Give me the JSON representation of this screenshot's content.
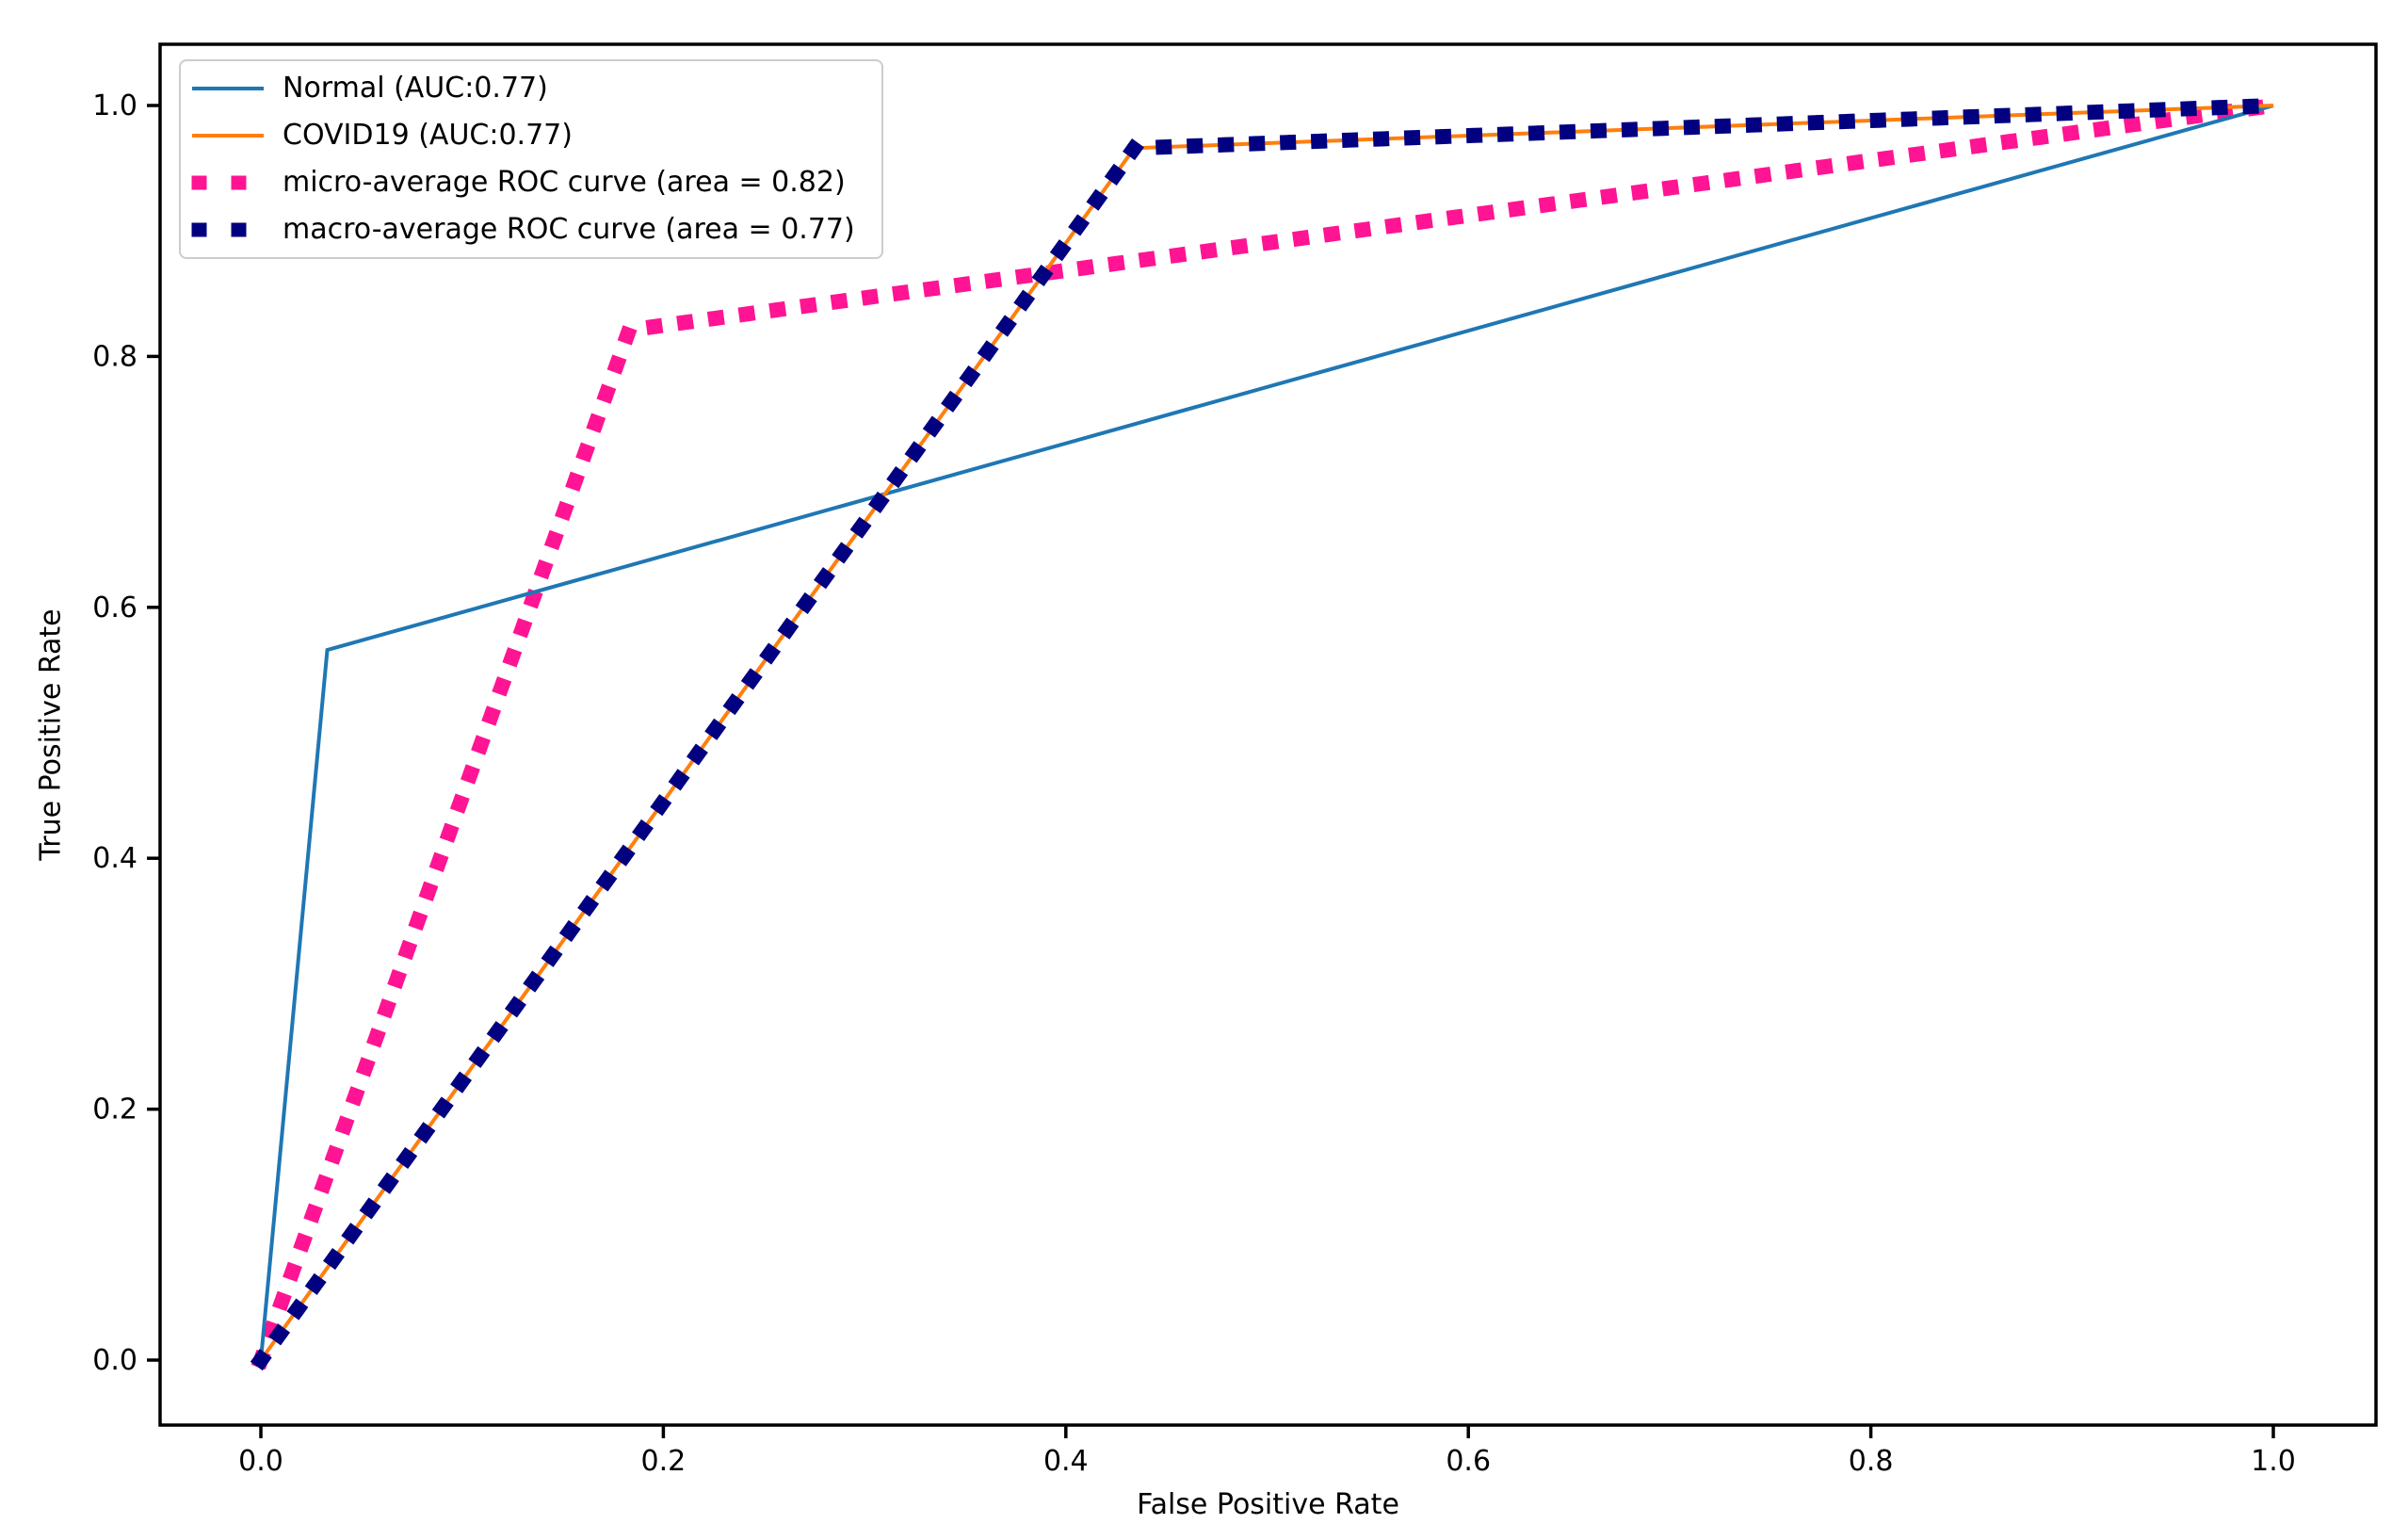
{
  "chart_data": {
    "type": "line",
    "title": "",
    "xlabel": "False Positive Rate",
    "ylabel": "True Positive Rate",
    "xlim": [
      -0.05,
      1.05
    ],
    "ylim": [
      -0.05,
      1.05
    ],
    "grid": false,
    "legend_position": "upper left",
    "x_ticks": [
      0.0,
      0.2,
      0.4,
      0.6,
      0.8,
      1.0
    ],
    "x_tick_labels": [
      "0.0",
      "0.2",
      "0.4",
      "0.6",
      "0.8",
      "1.0"
    ],
    "y_ticks": [
      0.0,
      0.2,
      0.4,
      0.6,
      0.8,
      1.0
    ],
    "y_tick_labels": [
      "0.0",
      "0.2",
      "0.4",
      "0.6",
      "0.8",
      "1.0"
    ],
    "series": [
      {
        "id": "normal",
        "name": "Normal (AUC:0.77)",
        "color": "#1f77b4",
        "linestyle": "solid",
        "auc": 0.77,
        "points": [
          [
            0.0,
            0.0
          ],
          [
            0.033,
            0.566
          ],
          [
            1.0,
            1.0
          ]
        ]
      },
      {
        "id": "covid19",
        "name": "COVID19 (AUC:0.77)",
        "color": "#ff7f0e",
        "linestyle": "solid",
        "auc": 0.77,
        "points": [
          [
            0.0,
            0.0
          ],
          [
            0.434,
            0.966
          ],
          [
            1.0,
            1.0
          ]
        ]
      },
      {
        "id": "micro-average",
        "name": "micro-average ROC curve (area = 0.82)",
        "color": "#ff1493",
        "linestyle": "dotted",
        "auc": 0.82,
        "points": [
          [
            0.0,
            0.0
          ],
          [
            0.183,
            0.821
          ],
          [
            1.0,
            1.0
          ]
        ]
      },
      {
        "id": "macro-average",
        "name": "macro-average ROC curve (area = 0.77)",
        "color": "#000080",
        "linestyle": "dotted",
        "auc": 0.77,
        "points": [
          [
            0.0,
            0.0
          ],
          [
            0.434,
            0.966
          ],
          [
            1.0,
            1.0
          ]
        ]
      }
    ]
  }
}
